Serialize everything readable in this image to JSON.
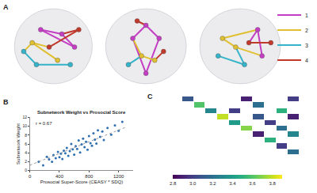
{
  "chart_data": [
    {
      "type": "network",
      "panel": "A",
      "xlim": [
        0,
        1
      ],
      "ylim": [
        0,
        1
      ],
      "tick_labels": false,
      "legend": "upper right",
      "series": [
        {
          "name": "1",
          "color": "#c43ec4"
        },
        {
          "name": "2",
          "color": "#e0c030"
        },
        {
          "name": "3",
          "color": "#35b3c8"
        },
        {
          "name": "4",
          "color": "#c0392b"
        }
      ],
      "views": [
        {
          "nodes": {
            "x": [
              0.25,
              0.15,
              0.35,
              0.6,
              0.75,
              0.55,
              0.3,
              0.8,
              0.45,
              0.7
            ],
            "y": [
              0.55,
              0.45,
              0.7,
              0.65,
              0.5,
              0.35,
              0.3,
              0.7,
              0.5,
              0.3
            ],
            "group": [
              2,
              3,
              1,
              1,
              1,
              2,
              3,
              4,
              4,
              3
            ]
          },
          "edges": [
            [
              0,
              1,
              2
            ],
            [
              0,
              5,
              2
            ],
            [
              2,
              3,
              1
            ],
            [
              3,
              4,
              1
            ],
            [
              2,
              4,
              1
            ],
            [
              1,
              6,
              3
            ],
            [
              6,
              9,
              3
            ],
            [
              7,
              8,
              4
            ],
            [
              0,
              8,
              2
            ],
            [
              3,
              7,
              4
            ]
          ]
        },
        {
          "nodes": {
            "x": [
              0.5,
              0.35,
              0.65,
              0.45,
              0.6,
              0.3,
              0.7,
              0.5,
              0.4
            ],
            "y": [
              0.75,
              0.6,
              0.6,
              0.4,
              0.35,
              0.3,
              0.45,
              0.2,
              0.8
            ],
            "group": [
              1,
              1,
              1,
              2,
              2,
              3,
              4,
              1,
              4
            ]
          },
          "edges": [
            [
              0,
              1,
              1
            ],
            [
              0,
              2,
              1
            ],
            [
              1,
              7,
              1
            ],
            [
              2,
              7,
              1
            ],
            [
              3,
              4,
              2
            ],
            [
              3,
              5,
              3
            ],
            [
              4,
              6,
              4
            ],
            [
              8,
              0,
              4
            ],
            [
              1,
              3,
              2
            ]
          ]
        },
        {
          "nodes": {
            "x": [
              0.3,
              0.45,
              0.7,
              0.75,
              0.55,
              0.25,
              0.6,
              0.85
            ],
            "y": [
              0.6,
              0.5,
              0.7,
              0.4,
              0.3,
              0.4,
              0.55,
              0.55
            ],
            "group": [
              2,
              2,
              1,
              1,
              3,
              3,
              4,
              4
            ]
          },
          "edges": [
            [
              0,
              1,
              2
            ],
            [
              1,
              3,
              2
            ],
            [
              2,
              3,
              1
            ],
            [
              2,
              6,
              1
            ],
            [
              4,
              5,
              3
            ],
            [
              1,
              4,
              3
            ],
            [
              6,
              7,
              4
            ],
            [
              0,
              2,
              2
            ]
          ]
        }
      ]
    },
    {
      "type": "scatter",
      "panel": "B",
      "title": "Subnetwork Weight vs Prosocial Score",
      "x_label": "Prosocial Super-Score (CEASY * SDQ)",
      "y_label": "Subnetwork Weight",
      "annotation": "r = 0.67",
      "color": "#2f6fb0",
      "marker": "circle",
      "grid": false,
      "x": [
        120,
        180,
        230,
        260,
        300,
        320,
        350,
        380,
        400,
        420,
        440,
        460,
        480,
        500,
        520,
        540,
        560,
        580,
        600,
        620,
        640,
        660,
        680,
        700,
        720,
        740,
        760,
        780,
        800,
        820,
        840,
        860,
        880,
        900,
        920,
        950,
        980,
        1000,
        1050,
        1100,
        1150,
        1200,
        1250
      ],
      "y": [
        2.0,
        1.2,
        3.1,
        2.5,
        2.0,
        3.5,
        2.8,
        4.2,
        3.0,
        3.8,
        2.6,
        4.5,
        3.9,
        5.1,
        3.3,
        4.4,
        6.0,
        4.8,
        3.6,
        5.5,
        4.9,
        6.8,
        4.1,
        5.9,
        7.2,
        5.3,
        6.5,
        4.7,
        7.8,
        6.2,
        5.6,
        8.4,
        7.0,
        6.1,
        9.1,
        7.6,
        8.8,
        6.9,
        9.6,
        8.1,
        10.2,
        9.0,
        11.0
      ],
      "fit": {
        "x": [
          0,
          1300
        ],
        "y": [
          1.2,
          9.8
        ],
        "color": "#999999",
        "line_style": "dot"
      },
      "xlim": [
        0,
        1400
      ],
      "xticks": [
        0,
        400,
        800,
        1200
      ],
      "ylim": [
        0,
        12
      ],
      "yticks": [
        0,
        2,
        4,
        6,
        8,
        10,
        12
      ]
    },
    {
      "type": "heatmap",
      "panel": "C",
      "color": "Viridis",
      "tick_labels": false,
      "zlim": [
        2.8,
        3.9
      ],
      "zticks": [
        2.8,
        3.0,
        3.2,
        3.4,
        3.6,
        3.8
      ],
      "z": [
        [
          null,
          null,
          3.1,
          null,
          null,
          null,
          null,
          2.9,
          null,
          null,
          null,
          3.0
        ],
        [
          null,
          null,
          null,
          3.6,
          null,
          null,
          null,
          null,
          3.2,
          null,
          null,
          null
        ],
        [
          null,
          null,
          null,
          null,
          3.3,
          null,
          3.0,
          null,
          null,
          null,
          3.5,
          null
        ],
        [
          null,
          null,
          null,
          null,
          null,
          3.8,
          null,
          null,
          3.1,
          null,
          null,
          2.9
        ],
        [
          null,
          null,
          null,
          null,
          null,
          null,
          3.4,
          null,
          null,
          3.0,
          null,
          null
        ],
        [
          null,
          null,
          null,
          null,
          null,
          null,
          null,
          3.7,
          null,
          null,
          3.2,
          null
        ],
        [
          null,
          null,
          null,
          null,
          null,
          null,
          null,
          null,
          2.9,
          null,
          null,
          3.3
        ],
        [
          null,
          null,
          null,
          null,
          null,
          null,
          null,
          null,
          null,
          3.5,
          null,
          null
        ],
        [
          null,
          null,
          null,
          null,
          null,
          null,
          null,
          null,
          null,
          null,
          3.0,
          null
        ],
        [
          null,
          null,
          null,
          null,
          null,
          null,
          null,
          null,
          null,
          null,
          null,
          3.2
        ],
        [
          null,
          null,
          null,
          null,
          null,
          null,
          null,
          null,
          null,
          null,
          null,
          null
        ],
        [
          null,
          null,
          null,
          null,
          null,
          null,
          null,
          null,
          null,
          null,
          null,
          null
        ]
      ]
    }
  ]
}
